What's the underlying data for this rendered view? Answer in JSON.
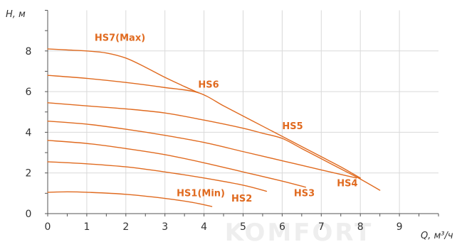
{
  "colors": {
    "curve": "#e06a1f",
    "label": "#e06a1f",
    "grid": "#d9d9d9",
    "axis": "#555555",
    "tick_text": "#333333",
    "watermark": "#eeeeee"
  },
  "watermark": {
    "text": "KOMFORT"
  },
  "chart_data": {
    "type": "line",
    "title": "",
    "xlabel": "Q, м³/ч",
    "ylabel": "H, м",
    "xlim": [
      0,
      10
    ],
    "ylim": [
      0,
      10
    ],
    "x_ticks": [
      0,
      1,
      2,
      3,
      4,
      5,
      6,
      7,
      8,
      9
    ],
    "y_ticks": [
      0,
      2,
      4,
      6,
      8
    ],
    "grid": true,
    "series": [
      {
        "name": "HS7(Max)",
        "points": [
          [
            0,
            8.1
          ],
          [
            0.5,
            8.05
          ],
          [
            1,
            8.0
          ],
          [
            1.5,
            7.9
          ],
          [
            2,
            7.65
          ],
          [
            2.5,
            7.2
          ],
          [
            3,
            6.7
          ],
          [
            3.5,
            6.25
          ],
          [
            3.85,
            5.95
          ]
        ]
      },
      {
        "name": "HS6",
        "points": [
          [
            0,
            6.8
          ],
          [
            1,
            6.65
          ],
          [
            2,
            6.45
          ],
          [
            3,
            6.2
          ],
          [
            3.85,
            5.95
          ],
          [
            4.5,
            5.3
          ],
          [
            5,
            4.8
          ],
          [
            5.5,
            4.3
          ],
          [
            6,
            3.8
          ],
          [
            6.5,
            3.3
          ],
          [
            7,
            2.8
          ],
          [
            7.5,
            2.3
          ],
          [
            8,
            1.75
          ]
        ]
      },
      {
        "name": "HS5",
        "points": [
          [
            0,
            5.45
          ],
          [
            1,
            5.3
          ],
          [
            2,
            5.15
          ],
          [
            3,
            4.95
          ],
          [
            4,
            4.6
          ],
          [
            5,
            4.2
          ],
          [
            5.5,
            3.95
          ],
          [
            6,
            3.7
          ],
          [
            6.5,
            3.2
          ],
          [
            7,
            2.7
          ],
          [
            7.5,
            2.2
          ],
          [
            8,
            1.7
          ],
          [
            8.5,
            1.15
          ]
        ]
      },
      {
        "name": "HS4",
        "points": [
          [
            0,
            4.55
          ],
          [
            1,
            4.4
          ],
          [
            2,
            4.15
          ],
          [
            3,
            3.85
          ],
          [
            4,
            3.5
          ],
          [
            5,
            3.05
          ],
          [
            6,
            2.6
          ],
          [
            7,
            2.15
          ],
          [
            7.9,
            1.75
          ]
        ]
      },
      {
        "name": "HS3",
        "points": [
          [
            0,
            3.6
          ],
          [
            1,
            3.45
          ],
          [
            2,
            3.2
          ],
          [
            3,
            2.9
          ],
          [
            4,
            2.5
          ],
          [
            5,
            2.05
          ],
          [
            6,
            1.6
          ],
          [
            6.6,
            1.3
          ]
        ]
      },
      {
        "name": "HS2",
        "points": [
          [
            0,
            2.55
          ],
          [
            1,
            2.45
          ],
          [
            2,
            2.3
          ],
          [
            3,
            2.05
          ],
          [
            4,
            1.75
          ],
          [
            5,
            1.4
          ],
          [
            5.6,
            1.1
          ]
        ]
      },
      {
        "name": "HS1(Min)",
        "points": [
          [
            0,
            1.05
          ],
          [
            0.5,
            1.07
          ],
          [
            1,
            1.05
          ],
          [
            2,
            0.95
          ],
          [
            3,
            0.75
          ],
          [
            3.7,
            0.55
          ],
          [
            4.2,
            0.35
          ]
        ]
      }
    ],
    "annotations": [
      {
        "text": "HS7(Max)",
        "x": 1.2,
        "y": 8.5
      },
      {
        "text": "HS6",
        "x": 3.85,
        "y": 6.2
      },
      {
        "text": "HS5",
        "x": 6.0,
        "y": 4.15
      },
      {
        "text": "HS4",
        "x": 7.4,
        "y": 1.35
      },
      {
        "text": "HS3",
        "x": 6.3,
        "y": 0.85
      },
      {
        "text": "HS2",
        "x": 4.7,
        "y": 0.6
      },
      {
        "text": "HS1(Min)",
        "x": 3.3,
        "y": 0.85
      }
    ]
  }
}
